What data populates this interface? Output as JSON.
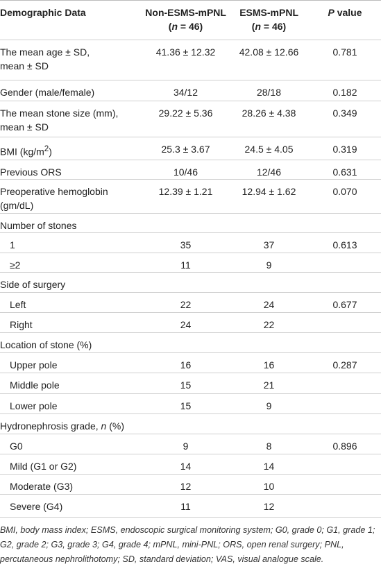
{
  "table": {
    "header": [
      "Demographic Data",
      [
        "Non-ESMS-mPNL",
        "(",
        "n",
        " = 46)"
      ],
      [
        "ESMS-mPNL",
        "(",
        "n",
        " = 46)"
      ],
      [
        "P",
        " value"
      ]
    ],
    "rows": [
      [
        [
          "The mean age ± SD,",
          "mean ± SD"
        ],
        "41.36 ± 12.32",
        "42.08 ± 12.66",
        "0.781"
      ],
      [
        "Gender (male/female)",
        "34/12",
        "28/18",
        "0.182"
      ],
      [
        [
          "The mean stone size (mm),",
          "mean ± SD"
        ],
        "29.22 ± 5.36",
        "28.26 ± 4.38",
        "0.349"
      ],
      [
        [
          "BMI (kg/m",
          "2",
          ")"
        ],
        "25.3 ± 3.67",
        "24.5 ± 4.05",
        "0.319"
      ],
      [
        "Previous ORS",
        "10/46",
        "12/46",
        "0.631"
      ],
      [
        [
          "Preoperative hemoglobin",
          "(gm/dL)"
        ],
        "12.39 ± 1.21",
        "12.94 ± 1.62",
        "0.070"
      ],
      [
        "Number of stones"
      ],
      [
        "1",
        "35",
        "37",
        "0.613"
      ],
      [
        "≥2",
        "11",
        "9"
      ],
      [
        "Side of surgery"
      ],
      [
        "Left",
        "22",
        "24",
        "0.677"
      ],
      [
        "Right",
        "24",
        "22"
      ],
      [
        "Location of stone (%)"
      ],
      [
        "Upper pole",
        "16",
        "16",
        "0.287"
      ],
      [
        "Middle pole",
        "15",
        "21"
      ],
      [
        "Lower pole",
        "15",
        "9"
      ],
      [
        [
          "Hydronephrosis grade, ",
          "n",
          " (%)"
        ]
      ],
      [
        "G0",
        "9",
        "8",
        "0.896"
      ],
      [
        "Mild (G1 or G2)",
        "14",
        "14"
      ],
      [
        "Moderate (G3)",
        "12",
        "10"
      ],
      [
        "Severe (G4)",
        "11",
        "12"
      ]
    ],
    "footnote": "BMI, body mass index; ESMS, endoscopic surgical monitoring system; G0, grade 0; G1, grade 1; G2, grade 2; G3, grade 3; G4, grade 4; mPNL, mini-PNL; ORS, open renal surgery; PNL, percutaneous nephrolithotomy; SD, standard deviation; VAS, visual analogue scale."
  }
}
